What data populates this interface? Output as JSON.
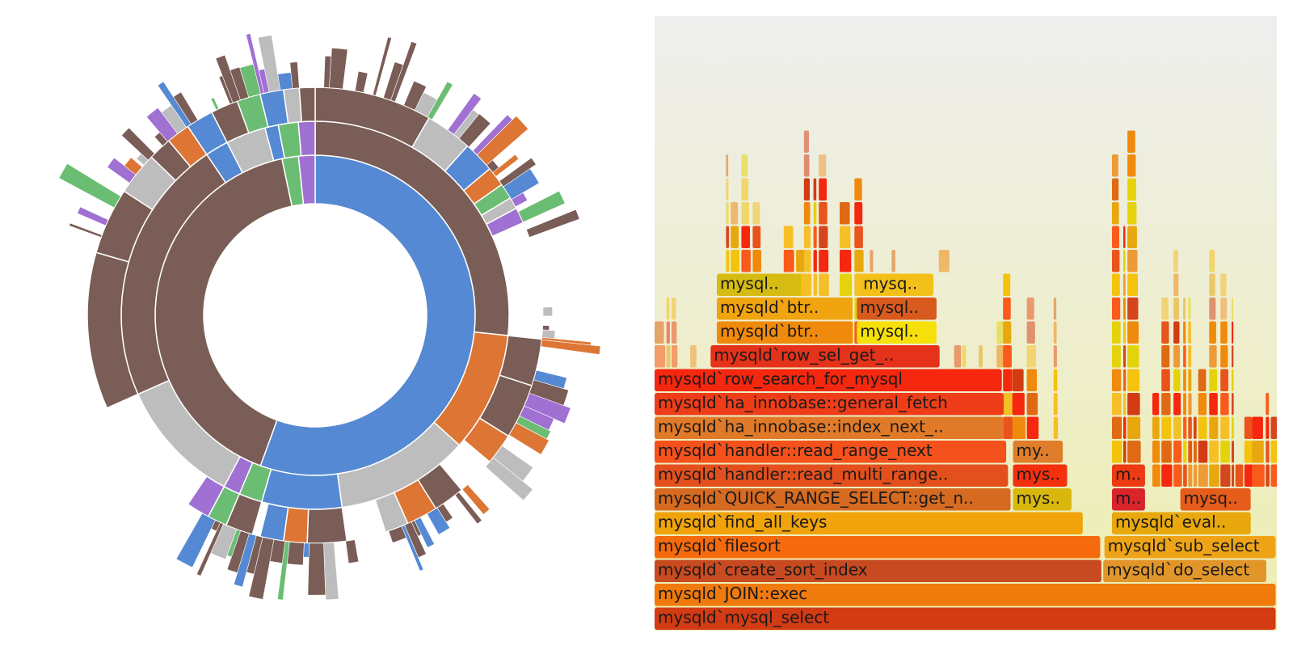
{
  "chart_data": [
    {
      "type": "sunburst",
      "palette": {
        "inner": "#5589d3",
        "brown": "#7a5d56",
        "gray": "#bdbdbd",
        "orange": "#dd7534",
        "green": "#6bbd73",
        "purple": "#a070d2",
        "blue": "#5589d3"
      },
      "rings": [
        {
          "level": 1,
          "arcs": [
            {
              "start": 0,
              "end": 200,
              "color": "blue"
            },
            {
              "start": 200,
              "end": 348,
              "color": "brown"
            },
            {
              "start": 348,
              "end": 354,
              "color": "green"
            },
            {
              "start": 354,
              "end": 360,
              "color": "purple"
            }
          ]
        },
        {
          "level": 2,
          "arcs": [
            {
              "start": 0,
              "end": 96,
              "color": "brown"
            },
            {
              "start": 96,
              "end": 132,
              "color": "orange"
            },
            {
              "start": 132,
              "end": 172,
              "color": "gray"
            },
            {
              "start": 172,
              "end": 196,
              "color": "blue"
            },
            {
              "start": 196,
              "end": 203,
              "color": "green"
            },
            {
              "start": 203,
              "end": 208,
              "color": "purple"
            },
            {
              "start": 208,
              "end": 246,
              "color": "gray"
            },
            {
              "start": 246,
              "end": 326,
              "color": "brown"
            },
            {
              "start": 326,
              "end": 333,
              "color": "blue"
            },
            {
              "start": 333,
              "end": 345,
              "color": "gray"
            },
            {
              "start": 345,
              "end": 349,
              "color": "blue"
            },
            {
              "start": 349,
              "end": 355,
              "color": "green"
            },
            {
              "start": 355,
              "end": 360,
              "color": "purple"
            }
          ]
        },
        {
          "level": 3,
          "arcs": [
            {
              "start": 0,
              "end": 30,
              "color": "brown"
            },
            {
              "start": 30,
              "end": 42,
              "color": "gray"
            },
            {
              "start": 42,
              "end": 50,
              "color": "blue"
            },
            {
              "start": 50,
              "end": 55,
              "color": "orange"
            },
            {
              "start": 55,
              "end": 59,
              "color": "green"
            },
            {
              "start": 59,
              "end": 62,
              "color": "gray"
            },
            {
              "start": 62,
              "end": 66,
              "color": "purple"
            },
            {
              "start": 96,
              "end": 108,
              "color": "brown"
            },
            {
              "start": 108,
              "end": 122,
              "color": "brown"
            },
            {
              "start": 122,
              "end": 130,
              "color": "orange"
            },
            {
              "start": 140,
              "end": 148,
              "color": "brown"
            },
            {
              "start": 148,
              "end": 156,
              "color": "orange"
            },
            {
              "start": 156,
              "end": 162,
              "color": "gray"
            },
            {
              "start": 172,
              "end": 182,
              "color": "brown"
            },
            {
              "start": 182,
              "end": 188,
              "color": "orange"
            },
            {
              "start": 188,
              "end": 194,
              "color": "blue"
            },
            {
              "start": 196,
              "end": 203,
              "color": "brown"
            },
            {
              "start": 203,
              "end": 208,
              "color": "green"
            },
            {
              "start": 208,
              "end": 214,
              "color": "purple"
            },
            {
              "start": 246,
              "end": 286,
              "color": "brown"
            },
            {
              "start": 286,
              "end": 303,
              "color": "brown"
            },
            {
              "start": 303,
              "end": 314,
              "color": "gray"
            },
            {
              "start": 314,
              "end": 320,
              "color": "brown"
            },
            {
              "start": 320,
              "end": 326,
              "color": "orange"
            },
            {
              "start": 326,
              "end": 333,
              "color": "blue"
            },
            {
              "start": 333,
              "end": 340,
              "color": "brown"
            },
            {
              "start": 340,
              "end": 346,
              "color": "green"
            },
            {
              "start": 346,
              "end": 352,
              "color": "blue"
            },
            {
              "start": 352,
              "end": 356,
              "color": "gray"
            },
            {
              "start": 356,
              "end": 360,
              "color": "brown"
            }
          ]
        }
      ]
    },
    {
      "type": "flamegraph",
      "palette": [
        "#f5270f",
        "#e8541c",
        "#f08a0c",
        "#e8a70e",
        "#f4c30d",
        "#d23b14",
        "#e06a14",
        "#ee9a36",
        "#f5bf28",
        "#d6461e",
        "#fa5a1a",
        "#e4d30c"
      ],
      "frames": [
        {
          "depth": 0,
          "start": 0.0,
          "end": 1.0,
          "label": "mysqld`mysql_select",
          "color": "#d23b14"
        },
        {
          "depth": 1,
          "start": 0.0,
          "end": 1.0,
          "label": "mysqld`JOIN::exec",
          "color": "#f07a0c"
        },
        {
          "depth": 2,
          "start": 0.0,
          "end": 0.72,
          "label": "mysqld`create_sort_index",
          "color": "#c84a20"
        },
        {
          "depth": 2,
          "start": 0.721,
          "end": 0.985,
          "label": "mysqld`do_select",
          "color": "#e2962a"
        },
        {
          "depth": 3,
          "start": 0.0,
          "end": 0.718,
          "label": "mysqld`filesort",
          "color": "#f56a0d"
        },
        {
          "depth": 3,
          "start": 0.723,
          "end": 1.0,
          "label": "mysqld`sub_select",
          "color": "#efa417"
        },
        {
          "depth": 4,
          "start": 0.0,
          "end": 0.69,
          "label": "mysqld`find_all_keys",
          "color": "#f0a30a"
        },
        {
          "depth": 4,
          "start": 0.735,
          "end": 0.96,
          "label": "mysqld`eval..",
          "color": "#e8a80e"
        },
        {
          "depth": 5,
          "start": 0.0,
          "end": 0.574,
          "label": "mysqld`QUICK_RANGE_SELECT::get_n..",
          "color": "#d66a20"
        },
        {
          "depth": 5,
          "start": 0.576,
          "end": 0.672,
          "label": "mys..",
          "color": "#d8b80d"
        },
        {
          "depth": 5,
          "start": 0.735,
          "end": 0.79,
          "label": "m..",
          "color": "#d8242a"
        },
        {
          "depth": 5,
          "start": 0.845,
          "end": 0.96,
          "label": "mysq..",
          "color": "#e65c1a"
        },
        {
          "depth": 6,
          "start": 0.0,
          "end": 0.57,
          "label": "mysqld`handler::read_multi_range..",
          "color": "#e4501d"
        },
        {
          "depth": 6,
          "start": 0.576,
          "end": 0.665,
          "label": "mys..",
          "color": "#f5300f"
        },
        {
          "depth": 6,
          "start": 0.735,
          "end": 0.79,
          "label": "m..",
          "color": "#ec3a12"
        },
        {
          "depth": 7,
          "start": 0.0,
          "end": 0.567,
          "label": "mysqld`handler::read_range_next",
          "color": "#f4511c"
        },
        {
          "depth": 7,
          "start": 0.576,
          "end": 0.658,
          "label": "my..",
          "color": "#e07d2a"
        },
        {
          "depth": 8,
          "start": 0.0,
          "end": 0.563,
          "label": "mysqld`ha_innobase::index_next_..",
          "color": "#e07a28"
        },
        {
          "depth": 9,
          "start": 0.0,
          "end": 0.563,
          "label": "mysqld`ha_innobase::general_fetch",
          "color": "#ee3d18"
        },
        {
          "depth": 10,
          "start": 0.0,
          "end": 0.56,
          "label": "mysqld`row_search_for_mysql",
          "color": "#f5270f"
        },
        {
          "depth": 11,
          "start": 0.09,
          "end": 0.46,
          "label": "mysqld`row_sel_get_..",
          "color": "#e5321a"
        },
        {
          "depth": 12,
          "start": 0.1,
          "end": 0.32,
          "label": "mysqld`btr..",
          "color": "#f08a0c"
        },
        {
          "depth": 12,
          "start": 0.325,
          "end": 0.455,
          "label": "mysql..",
          "color": "#f7e00a"
        },
        {
          "depth": 13,
          "start": 0.1,
          "end": 0.32,
          "label": "mysqld`btr..",
          "color": "#f0a410"
        },
        {
          "depth": 13,
          "start": 0.325,
          "end": 0.455,
          "label": "mysql..",
          "color": "#d85a1c"
        },
        {
          "depth": 14,
          "start": 0.1,
          "end": 0.237,
          "label": "mysql..",
          "color": "#d6bc12"
        },
        {
          "depth": 14,
          "start": 0.33,
          "end": 0.45,
          "label": "mysq..",
          "color": "#f2c018"
        }
      ]
    }
  ]
}
